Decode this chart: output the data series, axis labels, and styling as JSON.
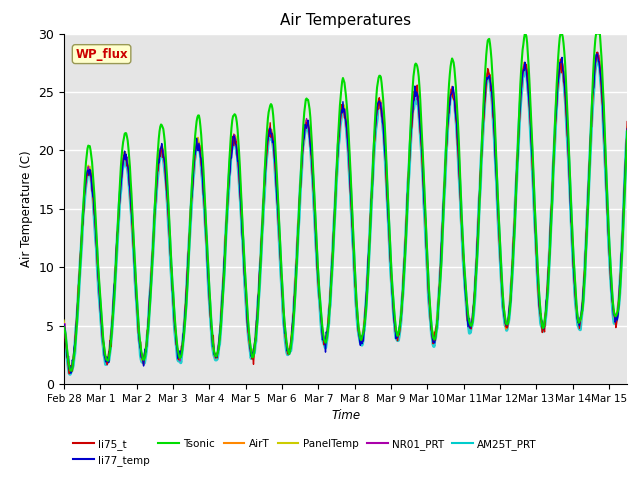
{
  "title": "Air Temperatures",
  "ylabel": "Air Temperature (C)",
  "xlabel": "Time",
  "ylim": [
    0,
    30
  ],
  "background_color": "#e5e5e5",
  "plot_bg_color": "#e5e5e5",
  "legend_entries": [
    "li75_t",
    "li77_temp",
    "Tsonic",
    "AirT",
    "PanelTemp",
    "NR01_PRT",
    "AM25T_PRT"
  ],
  "series_colors": [
    "#cc0000",
    "#0000cc",
    "#00dd00",
    "#ff8800",
    "#cccc00",
    "#aa00aa",
    "#00cccc"
  ],
  "series_linewidths": [
    1.0,
    1.0,
    1.5,
    1.0,
    1.0,
    1.0,
    1.2
  ],
  "annotation_text": "WP_flux",
  "annotation_color": "#cc0000",
  "annotation_bg": "#ffffcc",
  "tick_labels": [
    "Feb 28",
    "Mar 1",
    "Mar 2",
    "Mar 3",
    "Mar 4",
    "Mar 5",
    "Mar 6",
    "Mar 7",
    "Mar 8",
    "Mar 9",
    "Mar 10",
    "Mar 11",
    "Mar 12",
    "Mar 13",
    "Mar 14",
    "Mar 15"
  ],
  "tick_positions": [
    0,
    1,
    2,
    3,
    4,
    5,
    6,
    7,
    8,
    9,
    10,
    11,
    12,
    13,
    14,
    15
  ],
  "ytick_positions": [
    0,
    5,
    10,
    15,
    20,
    25,
    30
  ],
  "ytick_labels": [
    "0",
    "5",
    "10",
    "15",
    "20",
    "25",
    "30"
  ],
  "figsize": [
    6.4,
    4.8
  ],
  "dpi": 100
}
